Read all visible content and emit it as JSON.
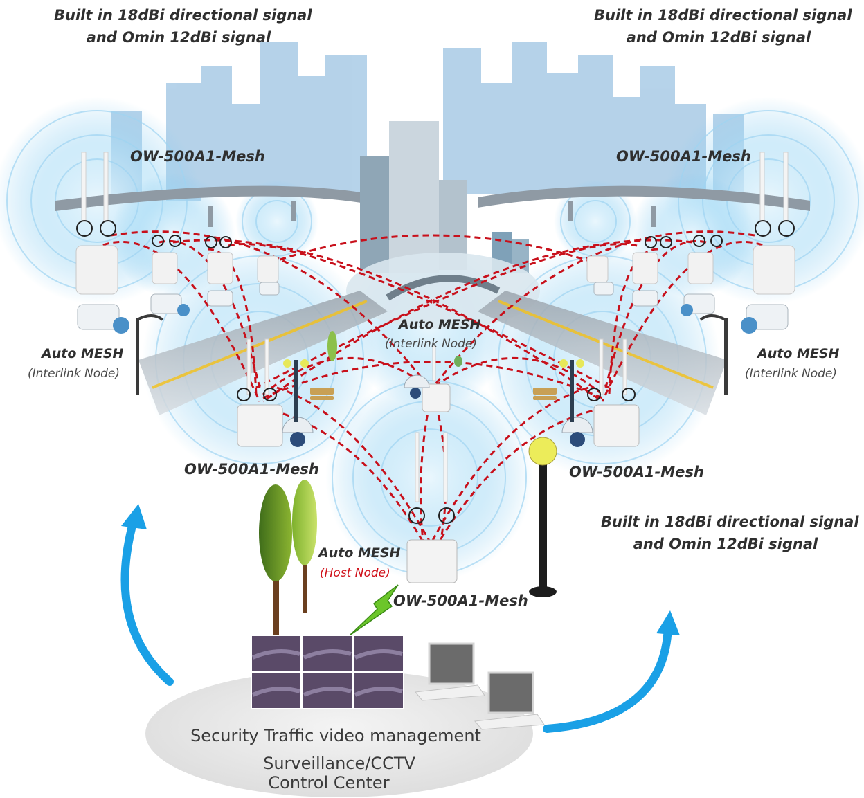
{
  "captions": {
    "top_left": [
      "Built in 18dBi directional signal",
      "and Omin 12dBi signal"
    ],
    "top_right": [
      "Built in 18dBi directional signal",
      "and Omin 12dBi signal"
    ],
    "bottom_right": [
      "Built in 18dBi directional signal",
      "and Omin 12dBi signal"
    ]
  },
  "nodes": {
    "top_left_model": "OW-500A1-Mesh",
    "top_right_model": "OW-500A1-Mesh",
    "mid_left_model": "OW-500A1-Mesh",
    "mid_right_model": "OW-500A1-Mesh",
    "host_model": "OW-500A1-Mesh",
    "left_mesh": "Auto MESH",
    "left_role": "(Interlink Node)",
    "center_mesh": "Auto MESH",
    "center_role": "(Interlink Node)",
    "right_mesh": "Auto MESH",
    "right_role": "(Interlink Node)",
    "host_mesh": "Auto MESH",
    "host_role": "(Host Node)"
  },
  "control_center": {
    "line1": "Security Traffic video management",
    "line2": "Surveillance/CCTV",
    "line3": "Control Center"
  },
  "colors": {
    "link": "#c8101b",
    "signal": "#7cc6ef",
    "arrow": "#1aa0e6",
    "bolt": "#6cc62a",
    "skyline": "#a9cbe6"
  },
  "icons": [
    "access-point-icon",
    "camera-icon",
    "dome-camera-icon",
    "street-lamp-icon",
    "tree-icon",
    "monitor-icon",
    "bench-icon"
  ]
}
